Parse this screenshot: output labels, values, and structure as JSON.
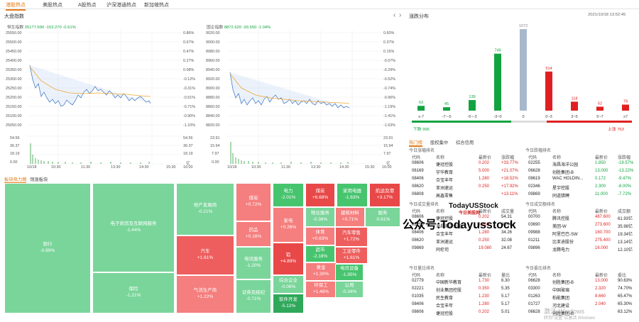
{
  "tabs": [
    "港股热点",
    "美股热点",
    "A股热点",
    "沪深港通热点",
    "新加坡热点"
  ],
  "index_section": {
    "title": "大盘指数"
  },
  "hsi": {
    "name": "恒生指数",
    "value": "25177.690",
    "change": "-153.270",
    "pct": "-0.61%",
    "y_left": [
      "25550.00",
      "25500.00",
      "25450.00",
      "25400.00",
      "25350.00",
      "25300.00",
      "25250.00",
      "25200.00",
      "25150.00",
      "25100.00",
      "25050.00"
    ],
    "y_right": [
      "0.86%",
      "0.67%",
      "0.47%",
      "0.27%",
      "0.08%",
      "-0.12%",
      "-0.31%",
      "-0.51%",
      "-0.71%",
      "-0.90%",
      "-1.10%"
    ],
    "vol_left": [
      "54.56",
      "36.37",
      "18.19",
      "0.00"
    ],
    "vol_right": [
      "54.56",
      "36.37",
      "18.19",
      "亿"
    ],
    "x": [
      "10/18",
      "10:30",
      "11:30",
      "13:30",
      "14:30",
      "15:30",
      "16:00"
    ]
  },
  "hsci": {
    "name": "国企指数",
    "value": "8872.620",
    "change": "-93.550",
    "pct": "-1.04%",
    "y_left": [
      "9020.00",
      "9000.00",
      "8980.00",
      "8960.00",
      "8940.00",
      "8920.00",
      "8900.00",
      "8880.00",
      "8860.00",
      "8840.00",
      "8820.00"
    ],
    "y_right": [
      "0.60%",
      "0.37%",
      "0.15%",
      "-0.07%",
      "-0.29%",
      "-0.52%",
      "-0.74%",
      "-0.96%",
      "-1.19%",
      "-1.41%",
      "-1.63%"
    ],
    "vol_left": [
      "23.91",
      "15.94",
      "7.97",
      "0.00"
    ],
    "vol_right": [
      "23.91",
      "15.94",
      "7.97",
      "亿"
    ],
    "x": [
      "10/18",
      "10:30",
      "11:30",
      "13:30",
      "14:30",
      "15:30",
      "16:00"
    ]
  },
  "distribution": {
    "title": "涨跌分布",
    "timestamp": "2021/10/18 13:52:45",
    "chart_data": {
      "type": "bar",
      "categories": [
        "≤-7",
        "-7~-5",
        "-5~-3",
        "-3~0",
        "0",
        "0~3",
        "3~5",
        "5~7",
        "≥7"
      ],
      "values": [
        63,
        45,
        139,
        749,
        1072,
        514,
        118,
        52,
        79
      ]
    },
    "down_label": "下跌 996",
    "up_label": "上涨 763"
  },
  "heatmap": {
    "tab1": "板块热力图",
    "tab2": "领涨板块",
    "cells": [
      {
        "n": "银行",
        "p": "-0.89%"
      },
      {
        "n": "电子商贸及互联网服务",
        "p": "-1.44%"
      },
      {
        "n": "保险",
        "p": "-1.21%"
      },
      {
        "n": "地产发展商",
        "p": "-0.21%"
      },
      {
        "n": "汽车",
        "p": "+1.61%"
      },
      {
        "n": "气消生产商",
        "p": "+1.22%"
      },
      {
        "n": "煤炭",
        "p": "+0.72%"
      },
      {
        "n": "药品",
        "p": "+0.16%"
      },
      {
        "n": "电讯服务",
        "p": "-1.20%"
      },
      {
        "n": "证券及经纪",
        "p": "-0.71%"
      },
      {
        "n": "电力",
        "p": "-2.01%"
      },
      {
        "n": "煤炭",
        "p": "+6.68%"
      },
      {
        "n": "家用电器",
        "p": "-1.63%"
      },
      {
        "n": "航运及港",
        "p": "+3.17%"
      },
      {
        "n": "钢铁及铝",
        "p": "+2.45%"
      },
      {
        "n": "物业服务",
        "p": "-0.36%"
      },
      {
        "n": "建筑材料",
        "p": "+0.71%"
      },
      {
        "n": "服务",
        "p": "-0.61%"
      },
      {
        "n": "医疗服务",
        "p": "-1.29%"
      },
      {
        "n": "家电",
        "p": "+0.26%"
      },
      {
        "n": "铝",
        "p": "+4.89%"
      },
      {
        "n": "综合企业",
        "p": "-0.06%"
      },
      {
        "n": "软件开发",
        "p": "-5.12%"
      },
      {
        "n": "体育",
        "p": "+0.63%"
      },
      {
        "n": "超市",
        "p": "-2.18%"
      },
      {
        "n": "汽车零售",
        "p": "+1.72%"
      },
      {
        "n": "工业零件",
        "p": "+1.61%"
      },
      {
        "n": "黄金",
        "p": "+1.30%"
      },
      {
        "n": "电讯设备",
        "p": "-1.95%"
      },
      {
        "n": "环保工",
        "p": "+1.48%"
      },
      {
        "n": "公用",
        "p": "-0.34%"
      },
      {
        "n": "出",
        "p": "+0.68%"
      }
    ]
  },
  "hot": {
    "tabs": [
      "热门榜",
      "股权集中",
      "综合信用"
    ],
    "tables": [
      {
        "title": "今日涨幅排名",
        "headers": [
          "代码",
          "名称",
          "最新价",
          "涨跌幅"
        ],
        "rows": [
          [
            "08606",
            "倢冠控股",
            "0.202",
            "+33.77%"
          ],
          [
            "06169",
            "宇华教育",
            "5.000",
            "+21.07%"
          ],
          [
            "08406",
            "合宝丰年",
            "1.280",
            "+18.52%"
          ],
          [
            "08620",
            "亚洲速运",
            "0.250",
            "+17.92%"
          ],
          [
            "06808",
            "高鑫零售",
            "",
            "+13.11%"
          ]
        ]
      },
      {
        "title": "今日跌幅排名",
        "headers": [
          "代码",
          "名称",
          "最新价",
          "涨跌幅"
        ],
        "rows": [
          [
            "02255",
            "海昌海洋公园",
            "1.850",
            "-19.57%"
          ],
          [
            "06628",
            "创胜集团-B",
            "13.000",
            "-13.22%"
          ],
          [
            "08619",
            "WAC HOLDIN...",
            "0.172",
            "-9.47%"
          ],
          [
            "02346",
            "星宇控股",
            "2.300",
            "-8.00%"
          ],
          [
            "09869",
            "同道猎聘",
            "11.000",
            "-7.72%"
          ]
        ]
      },
      {
        "title": "今日成交量排名",
        "headers": [
          "代码",
          "名称",
          "最新价",
          "成交量"
        ],
        "rows": [
          [
            "08606",
            "倢冠控股",
            "0.202",
            "54.31"
          ],
          [
            "02255",
            "海昌海洋公园",
            "1.850",
            "40.00"
          ],
          [
            "08406",
            "合宝丰年",
            "1.280",
            "34.26"
          ],
          [
            "08620",
            "亚洲速运",
            "0.250",
            "32.08"
          ],
          [
            "09869",
            "同伦司",
            "19.080",
            "24.67"
          ]
        ]
      },
      {
        "title": "今日成交额排名",
        "headers": [
          "代码",
          "名称",
          "最新价",
          "成交额"
        ],
        "rows": [
          [
            "00700",
            "腾讯控股",
            "487.600",
            "61.93亿"
          ],
          [
            "03690",
            "美团-W",
            "273.600",
            "35.98亿"
          ],
          [
            "09988",
            "阿里巴巴-SW",
            "160.700",
            "19.34亿"
          ],
          [
            "01211",
            "比亚迪股份",
            "275.400",
            "13.14亿"
          ],
          [
            "09896",
            "龙腾电力",
            "16.000",
            "12.10亿"
          ]
        ]
      },
      {
        "title": "今日量比排名",
        "headers": [
          "代码",
          "名称",
          "最新价",
          "量比"
        ],
        "rows": [
          [
            "02779",
            "中国新华教育",
            "1.730",
            "6.30"
          ],
          [
            "02221",
            "创业集团控股",
            "0.350",
            "5.35"
          ],
          [
            "01035",
            "民生教育",
            "1.230",
            "5.17"
          ],
          [
            "08406",
            "合宝丰年",
            "1.280",
            "5.17"
          ],
          [
            "08606",
            "倢冠控股",
            "0.202",
            "5.01"
          ]
        ]
      },
      {
        "title": "今日委比排名",
        "headers": [
          "代码",
          "名称",
          "最新价",
          "委比"
        ],
        "rows": [
          [
            "06628",
            "创胜集团-B",
            "13.000",
            "90.63%"
          ],
          [
            "03300",
            "中国玻璃",
            "2.320",
            "74.70%"
          ],
          [
            "01263",
            "柏能集团",
            "8.660",
            "65.47%"
          ],
          [
            "01727",
            "河北建设",
            "2.040",
            "65.30%"
          ],
          [
            "06628",
            "创胜集团-B",
            "",
            "63.12%"
          ]
        ]
      }
    ]
  },
  "watermark": {
    "brand": "TodayUSStock",
    "sub": "今日美股网",
    "main": "公众号:Todayusstock"
  },
  "os_overlay": {
    "line1": "激活 Windows",
    "line2": "转到\"设置\"以激活 Windows"
  },
  "colors": {
    "up": "#e02020",
    "down": "#12a340",
    "accent": "#e07b16",
    "flat": "#a8b8cc"
  }
}
